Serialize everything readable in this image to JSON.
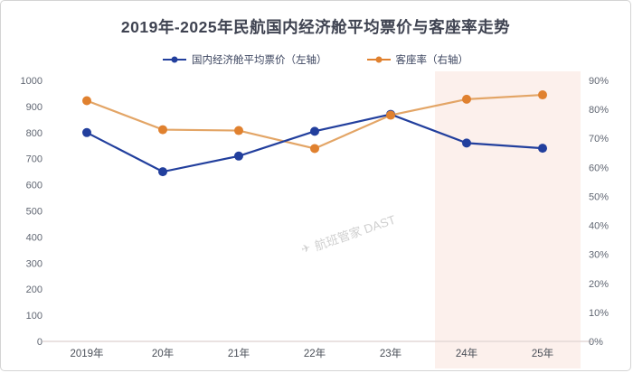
{
  "title": "2019年-2025年民航国内经济舱平均票价与客座率走势",
  "legend": [
    {
      "label": "国内经济舱平均票价（左轴）",
      "marker_color": "#223f9d"
    },
    {
      "label": "客座率（右轴）",
      "marker_color": "#e0812f"
    }
  ],
  "watermark": {
    "logo": "✈",
    "text": "航班管家 DAST"
  },
  "colors": {
    "price_line": "#223f9d",
    "price_dot": "#223f9d",
    "load_line": "#e3a566",
    "load_dot": "#e0812f",
    "axis_text": "#606672",
    "x_label_text": "#4a4f58",
    "axis_line": "#e4d9d7",
    "highlight_fill": "#fcf0ec",
    "title_text": "#3f4351"
  },
  "chart_data": {
    "type": "line",
    "title": "2019年-2025年民航国内经济舱平均票价与客座率走势",
    "categories": [
      "2019年",
      "20年",
      "21年",
      "22年",
      "23年",
      "24年",
      "25年"
    ],
    "series": [
      {
        "name": "国内经济舱平均票价（左轴）",
        "axis": "left",
        "values": [
          800,
          650,
          710,
          805,
          870,
          760,
          740
        ],
        "dot_color": "#223f9d",
        "line_color": "#223f9d"
      },
      {
        "name": "客座率（右轴）",
        "axis": "right",
        "values": [
          83,
          73,
          72.7,
          66.5,
          78,
          83.5,
          85
        ],
        "dot_color": "#e0812f",
        "line_color": "#e3a566"
      }
    ],
    "left_axis": {
      "min": 0,
      "max": 1000,
      "step": 100,
      "ticks": [
        "0",
        "100",
        "200",
        "300",
        "400",
        "500",
        "600",
        "700",
        "800",
        "900",
        "1000"
      ]
    },
    "right_axis": {
      "min": 0,
      "max": 90,
      "step": 10,
      "ticks": [
        "0%",
        "10%",
        "20%",
        "30%",
        "40%",
        "50%",
        "60%",
        "70%",
        "80%",
        "90%"
      ]
    },
    "highlight_region": {
      "from_category": "24年",
      "to_category": "25年",
      "fill": "#fcf0ec"
    },
    "legend_position": "top",
    "grid": false
  }
}
